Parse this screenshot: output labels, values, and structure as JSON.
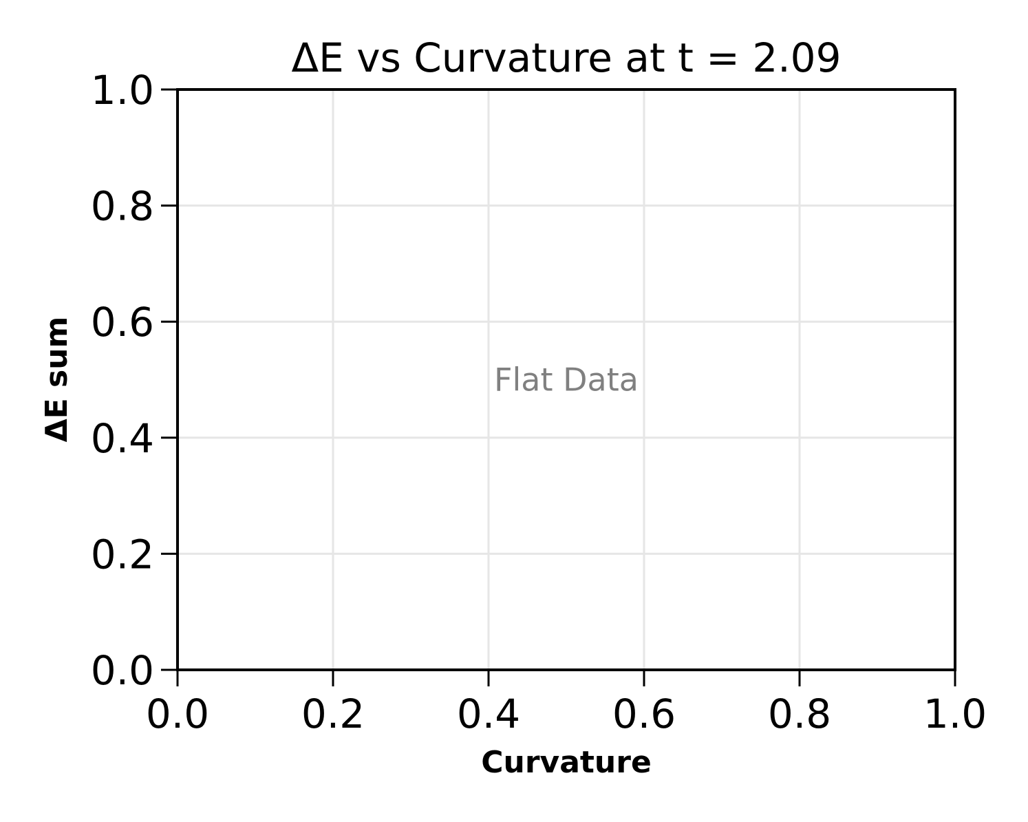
{
  "chart_data": {
    "type": "scatter",
    "title": "ΔE vs Curvature at t = 2.09",
    "xlabel": "Curvature",
    "ylabel": "ΔE sum",
    "xlim": [
      0.0,
      1.0
    ],
    "ylim": [
      0.0,
      1.0
    ],
    "xticks": [
      "0.0",
      "0.2",
      "0.4",
      "0.6",
      "0.8",
      "1.0"
    ],
    "yticks": [
      "0.0",
      "0.2",
      "0.4",
      "0.6",
      "0.8",
      "1.0"
    ],
    "grid": true,
    "series": [],
    "annotation": {
      "text": "Flat Data",
      "x": 0.5,
      "y": 0.5
    },
    "colors": {
      "annotation": "#808080",
      "grid": "#e6e6e6",
      "frame": "#000000"
    }
  }
}
